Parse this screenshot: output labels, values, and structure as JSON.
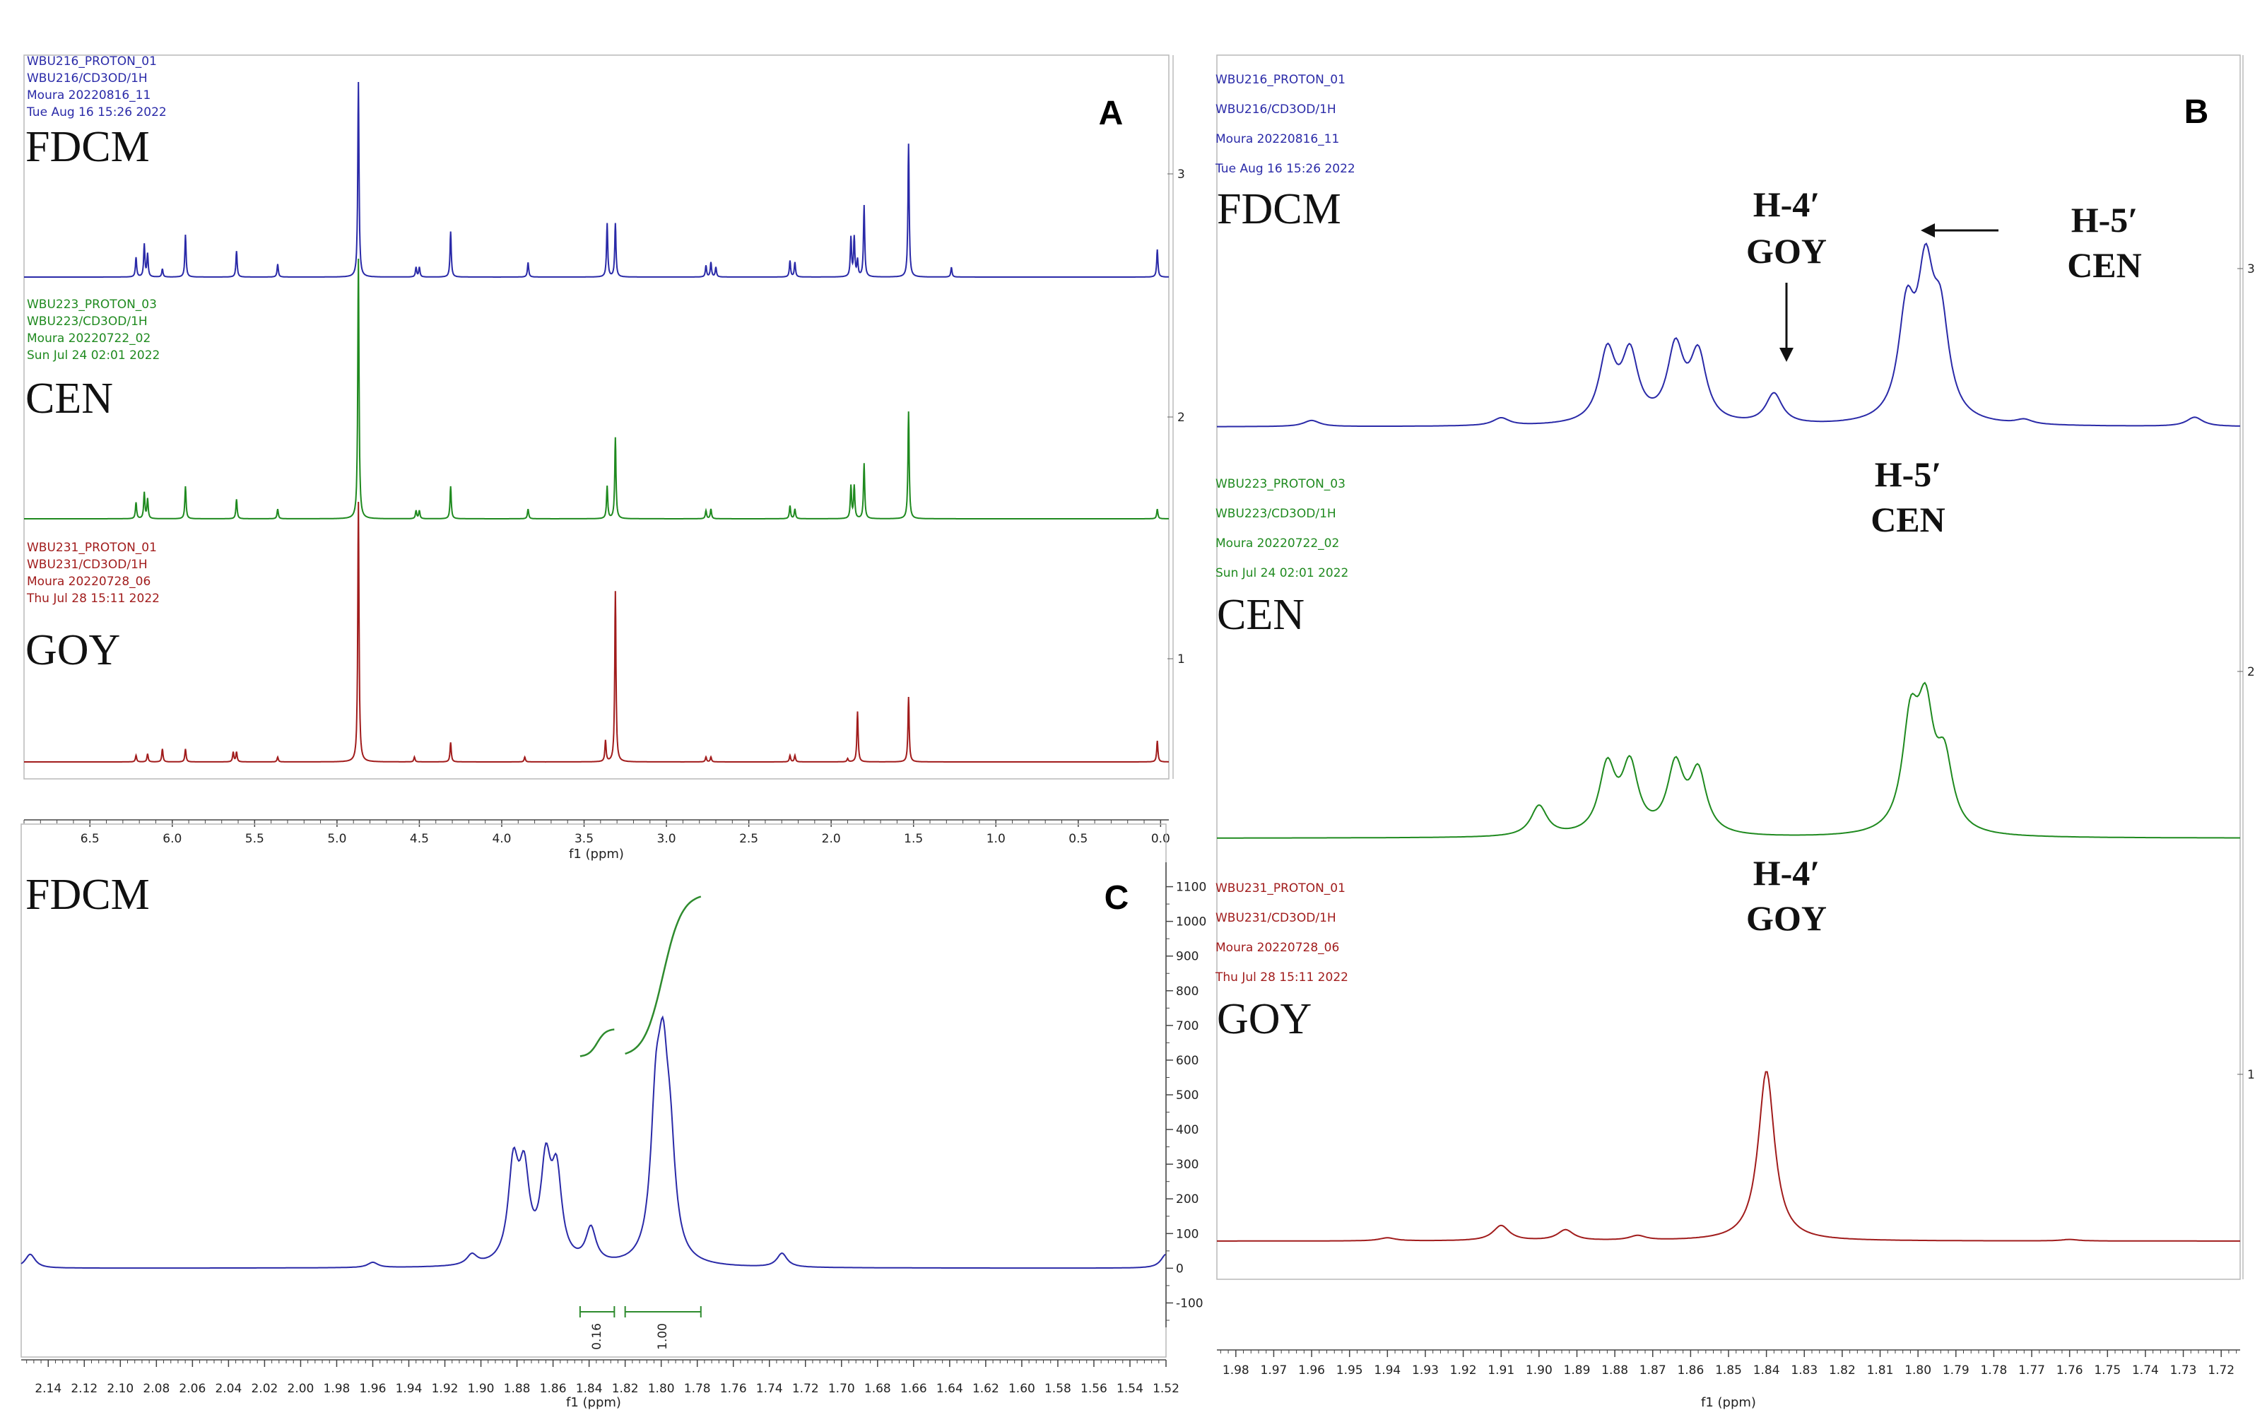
{
  "colors": {
    "fdcm": "#2a2aa8",
    "cen": "#1f8a1f",
    "goy": "#a11c1c",
    "integral": "#2e8b2e",
    "axis": "#444444"
  },
  "panel_labels": {
    "A": "A",
    "B": "B",
    "C": "C"
  },
  "samples": {
    "fdcm": {
      "name": "FDCM",
      "meta": [
        "WBU216_PROTON_01",
        "WBU216/CD3OD/1H",
        "Moura 20220816_11",
        "Tue Aug 16 15:26 2022"
      ]
    },
    "cen": {
      "name": "CEN",
      "meta": [
        "WBU223_PROTON_03",
        "WBU223/CD3OD/1H",
        "Moura 20220722_02",
        "Sun Jul 24 02:01 2022"
      ]
    },
    "goy": {
      "name": "GOY",
      "meta": [
        "WBU231_PROTON_01",
        "WBU231/CD3OD/1H",
        "Moura 20220728_06",
        "Thu Jul 28 15:11 2022"
      ]
    }
  },
  "annotations": {
    "h4": "H-4′",
    "h5": "H-5′",
    "goy": "GOY",
    "cen": "CEN"
  },
  "chart_data": [
    {
      "id": "A",
      "type": "line",
      "xlabel": "f1 (ppm)",
      "xlim": [
        6.9,
        -0.05
      ],
      "x_ticks": [
        "6.5",
        "6.0",
        "5.5",
        "5.0",
        "4.5",
        "4.0",
        "3.5",
        "3.0",
        "2.5",
        "2.0",
        "1.5",
        "1.0",
        "0.5",
        "0.0"
      ],
      "x_tick_values": [
        6.5,
        6.0,
        5.5,
        5.0,
        4.5,
        4.0,
        3.5,
        3.0,
        2.5,
        2.0,
        1.5,
        1.0,
        0.5,
        0.0
      ],
      "y_ticks": [
        "3",
        "2",
        "1"
      ],
      "series": [
        {
          "name": "FDCM",
          "peaks": [
            [
              6.22,
              0.12
            ],
            [
              6.17,
              0.2
            ],
            [
              6.15,
              0.14
            ],
            [
              6.06,
              0.05
            ],
            [
              5.92,
              0.26
            ],
            [
              5.61,
              0.16
            ],
            [
              5.36,
              0.08
            ],
            [
              4.87,
              1.2
            ],
            [
              4.52,
              0.06
            ],
            [
              4.5,
              0.06
            ],
            [
              4.31,
              0.28
            ],
            [
              3.84,
              0.09
            ],
            [
              3.36,
              0.33
            ],
            [
              3.31,
              0.33
            ],
            [
              2.76,
              0.07
            ],
            [
              2.73,
              0.09
            ],
            [
              2.7,
              0.06
            ],
            [
              2.25,
              0.1
            ],
            [
              2.22,
              0.09
            ],
            [
              1.88,
              0.24
            ],
            [
              1.86,
              0.24
            ],
            [
              1.84,
              0.1
            ],
            [
              1.8,
              0.44
            ],
            [
              1.53,
              0.82
            ],
            [
              1.27,
              0.06
            ],
            [
              0.02,
              0.17
            ]
          ]
        },
        {
          "name": "CEN",
          "peaks": [
            [
              6.22,
              0.1
            ],
            [
              6.17,
              0.16
            ],
            [
              6.15,
              0.12
            ],
            [
              5.92,
              0.2
            ],
            [
              5.61,
              0.12
            ],
            [
              5.36,
              0.06
            ],
            [
              4.87,
              1.6
            ],
            [
              4.52,
              0.05
            ],
            [
              4.5,
              0.05
            ],
            [
              4.31,
              0.2
            ],
            [
              3.84,
              0.06
            ],
            [
              3.36,
              0.2
            ],
            [
              3.31,
              0.5
            ],
            [
              2.76,
              0.05
            ],
            [
              2.73,
              0.06
            ],
            [
              2.25,
              0.08
            ],
            [
              2.22,
              0.06
            ],
            [
              1.88,
              0.2
            ],
            [
              1.86,
              0.2
            ],
            [
              1.8,
              0.34
            ],
            [
              1.53,
              0.66
            ],
            [
              0.02,
              0.06
            ]
          ]
        },
        {
          "name": "GOY",
          "peaks": [
            [
              6.22,
              0.04
            ],
            [
              6.15,
              0.05
            ],
            [
              6.06,
              0.08
            ],
            [
              5.92,
              0.08
            ],
            [
              5.63,
              0.06
            ],
            [
              5.61,
              0.06
            ],
            [
              5.36,
              0.03
            ],
            [
              4.87,
              1.6
            ],
            [
              4.53,
              0.03
            ],
            [
              4.31,
              0.12
            ],
            [
              3.86,
              0.03
            ],
            [
              3.37,
              0.13
            ],
            [
              3.31,
              1.05
            ],
            [
              2.76,
              0.03
            ],
            [
              2.73,
              0.03
            ],
            [
              2.25,
              0.04
            ],
            [
              2.22,
              0.04
            ],
            [
              1.9,
              0.02
            ],
            [
              1.84,
              0.31
            ],
            [
              1.53,
              0.4
            ],
            [
              0.02,
              0.13
            ]
          ]
        }
      ]
    },
    {
      "id": "B",
      "type": "line",
      "xlabel": "f1 (ppm)",
      "xlim": [
        1.985,
        1.715
      ],
      "x_ticks": [
        "1.98",
        "1.97",
        "1.96",
        "1.95",
        "1.94",
        "1.93",
        "1.92",
        "1.91",
        "1.90",
        "1.89",
        "1.88",
        "1.87",
        "1.86",
        "1.85",
        "1.84",
        "1.83",
        "1.82",
        "1.81",
        "1.80",
        "1.79",
        "1.78",
        "1.77",
        "1.76",
        "1.75",
        "1.74",
        "1.73",
        "1.72"
      ],
      "x_tick_values": [
        1.98,
        1.97,
        1.96,
        1.95,
        1.94,
        1.93,
        1.92,
        1.91,
        1.9,
        1.89,
        1.88,
        1.87,
        1.86,
        1.85,
        1.84,
        1.83,
        1.82,
        1.81,
        1.8,
        1.79,
        1.78,
        1.77,
        1.76,
        1.75,
        1.74,
        1.73,
        1.72
      ],
      "y_ticks": [
        "3",
        "2",
        "1"
      ],
      "series": [
        {
          "name": "FDCM",
          "peaks": [
            [
              1.96,
              0.02
            ],
            [
              1.91,
              0.025
            ],
            [
              1.882,
              0.23
            ],
            [
              1.876,
              0.22
            ],
            [
              1.864,
              0.24
            ],
            [
              1.858,
              0.22
            ],
            [
              1.838,
              0.1
            ],
            [
              1.803,
              0.34
            ],
            [
              1.798,
              0.44
            ],
            [
              1.794,
              0.3
            ],
            [
              1.772,
              0.015
            ],
            [
              1.727,
              0.03
            ]
          ]
        },
        {
          "name": "CEN",
          "peaks": [
            [
              1.9,
              0.1
            ],
            [
              1.882,
              0.22
            ],
            [
              1.876,
              0.22
            ],
            [
              1.864,
              0.22
            ],
            [
              1.858,
              0.2
            ],
            [
              1.802,
              0.34
            ],
            [
              1.798,
              0.36
            ],
            [
              1.793,
              0.22
            ]
          ]
        },
        {
          "name": "GOY",
          "peaks": [
            [
              1.94,
              0.01
            ],
            [
              1.91,
              0.05
            ],
            [
              1.893,
              0.035
            ],
            [
              1.874,
              0.015
            ],
            [
              1.84,
              0.56
            ],
            [
              1.76,
              0.005
            ]
          ]
        }
      ]
    },
    {
      "id": "C",
      "type": "line",
      "xlabel": "f1 (ppm)",
      "xlim": [
        2.155,
        1.52
      ],
      "x_ticks": [
        "2.14",
        "2.12",
        "2.10",
        "2.08",
        "2.06",
        "2.04",
        "2.02",
        "2.00",
        "1.98",
        "1.96",
        "1.94",
        "1.92",
        "1.90",
        "1.88",
        "1.86",
        "1.84",
        "1.82",
        "1.80",
        "1.78",
        "1.76",
        "1.74",
        "1.72",
        "1.70",
        "1.68",
        "1.66",
        "1.64",
        "1.62",
        "1.60",
        "1.58",
        "1.56",
        "1.54",
        "1.52"
      ],
      "x_tick_values": [
        2.14,
        2.12,
        2.1,
        2.08,
        2.06,
        2.04,
        2.02,
        2.0,
        1.98,
        1.96,
        1.94,
        1.92,
        1.9,
        1.88,
        1.86,
        1.84,
        1.82,
        1.8,
        1.78,
        1.76,
        1.74,
        1.72,
        1.7,
        1.68,
        1.66,
        1.64,
        1.62,
        1.6,
        1.58,
        1.56,
        1.54,
        1.52
      ],
      "ylim": [
        -150,
        1150
      ],
      "y_ticks": [
        "1100",
        "1000",
        "900",
        "800",
        "700",
        "600",
        "500",
        "400",
        "300",
        "200",
        "100",
        "0",
        "-100"
      ],
      "y_tick_values": [
        1100,
        1000,
        900,
        800,
        700,
        600,
        500,
        400,
        300,
        200,
        100,
        0,
        -100
      ],
      "series": [
        {
          "name": "FDCM",
          "peaks": [
            [
              2.15,
              40
            ],
            [
              1.96,
              15
            ],
            [
              1.905,
              30
            ],
            [
              1.882,
              270
            ],
            [
              1.876,
              240
            ],
            [
              1.864,
              270
            ],
            [
              1.858,
              240
            ],
            [
              1.839,
              100
            ],
            [
              1.803,
              380
            ],
            [
              1.799,
              450
            ],
            [
              1.795,
              260
            ],
            [
              1.733,
              40
            ],
            [
              1.52,
              40
            ]
          ]
        }
      ],
      "integrals": [
        {
          "from": 1.845,
          "to": 1.826,
          "value": "0.16",
          "y_start": 610,
          "y_end": 690
        },
        {
          "from": 1.82,
          "to": 1.778,
          "value": "1.00",
          "y_start": 610,
          "y_end": 1080
        }
      ]
    }
  ]
}
